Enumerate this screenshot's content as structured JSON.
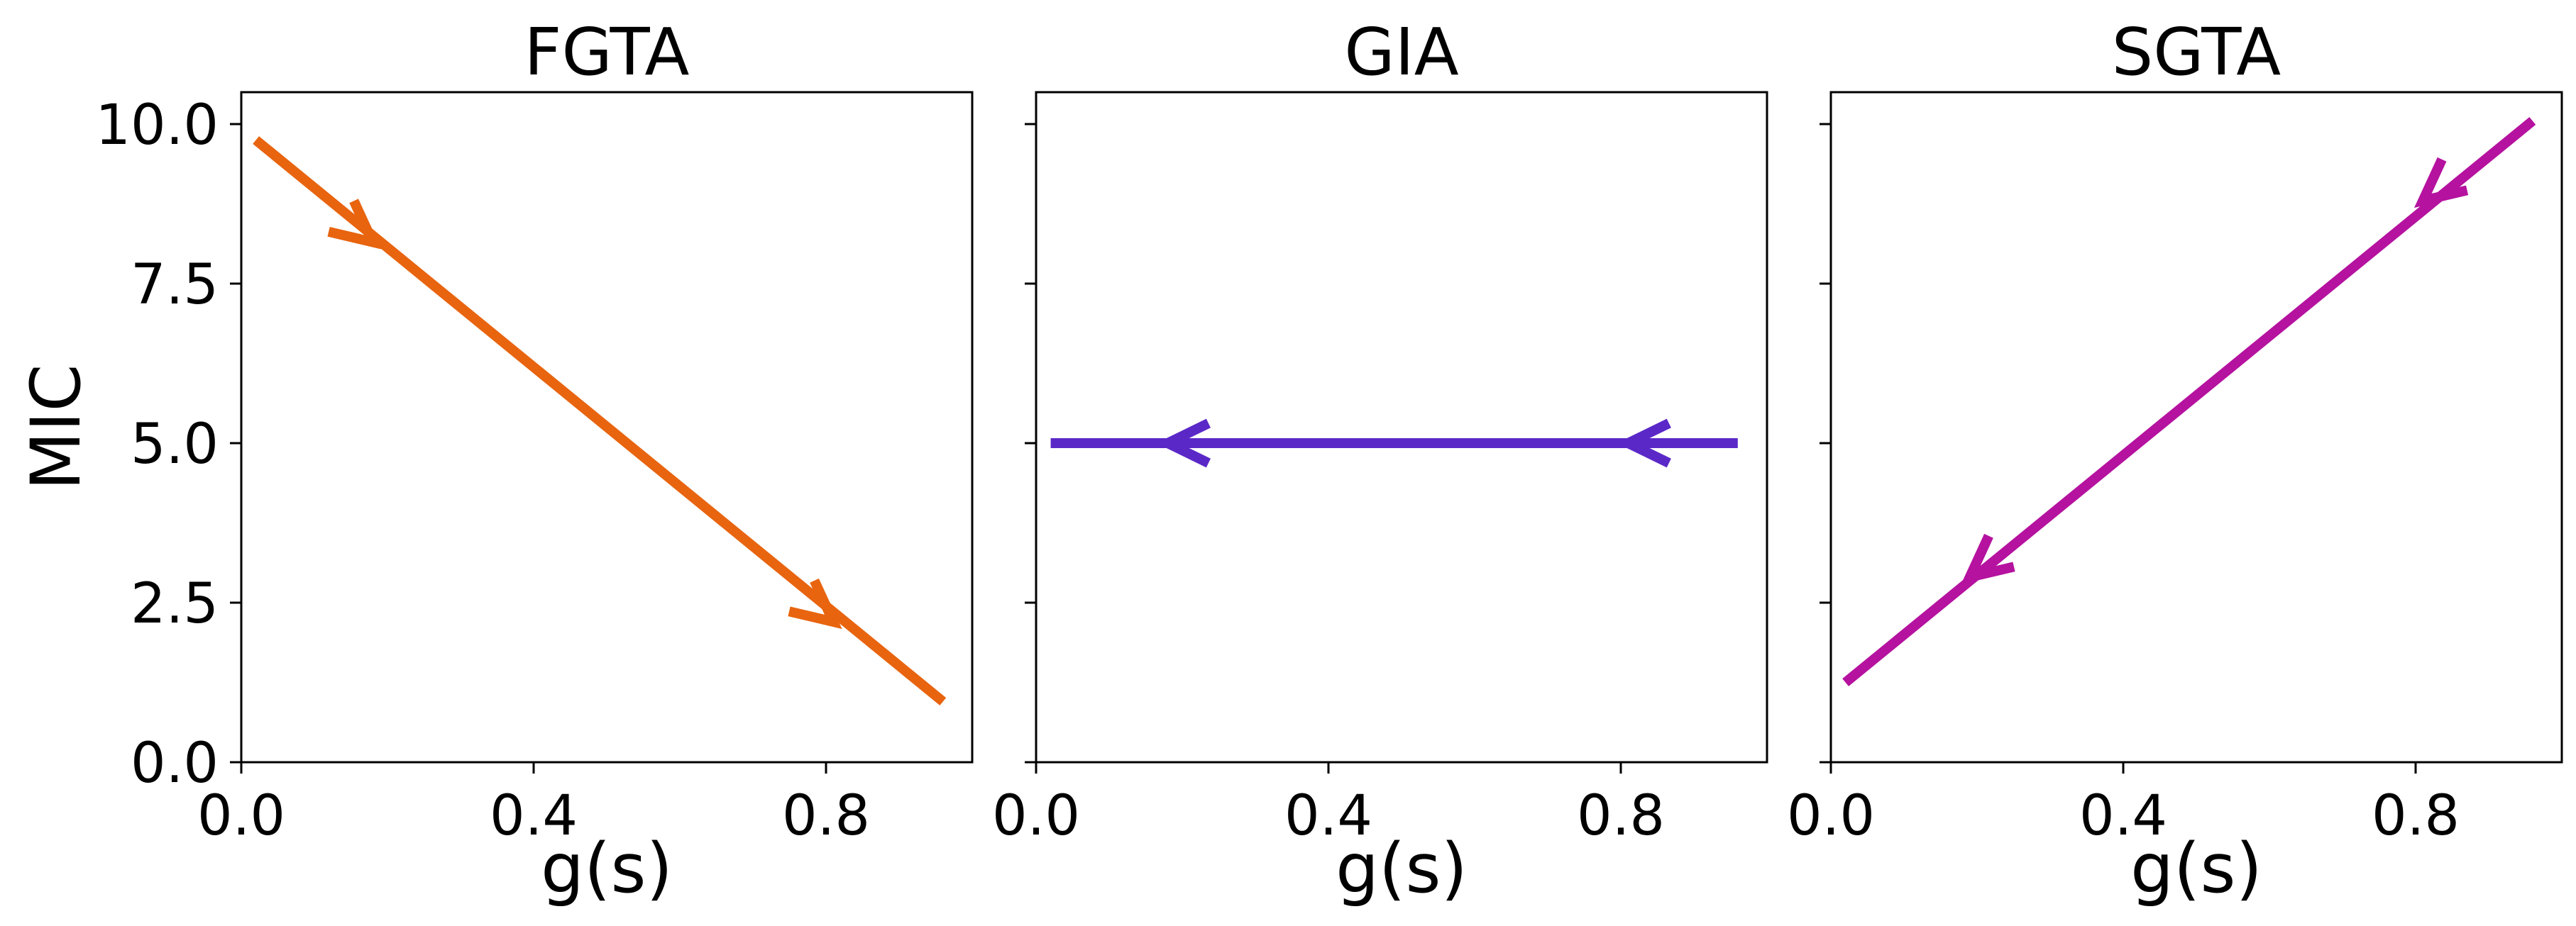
{
  "chart_data": [
    {
      "type": "line",
      "title": "FGTA",
      "xlabel": "g(s)",
      "ylabel": "MIC",
      "xlim": [
        0.0,
        1.0
      ],
      "ylim": [
        0.0,
        10.5
      ],
      "xticks": [
        "0.0",
        "0.4",
        "0.8"
      ],
      "xtick_values": [
        0.0,
        0.4,
        0.8
      ],
      "yticks": [
        "0.0",
        "2.5",
        "5.0",
        "7.5",
        "10.0"
      ],
      "ytick_values": [
        0.0,
        2.5,
        5.0,
        7.5,
        10.0
      ],
      "show_yticklabels": true,
      "series": [
        {
          "color": "#e8640f",
          "x": [
            0.02,
            0.96
          ],
          "y": [
            9.75,
            0.95
          ],
          "arrows": [
            {
              "x": 0.18,
              "y": 8.15
            },
            {
              "x": 0.81,
              "y": 2.2
            }
          ]
        }
      ]
    },
    {
      "type": "line",
      "title": "GIA",
      "xlabel": "g(s)",
      "ylabel": "",
      "xlim": [
        0.0,
        1.0
      ],
      "ylim": [
        0.0,
        10.5
      ],
      "xticks": [
        "0.0",
        "0.4",
        "0.8"
      ],
      "xtick_values": [
        0.0,
        0.4,
        0.8
      ],
      "yticks": [],
      "ytick_values": [
        0.0,
        2.5,
        5.0,
        7.5,
        10.0
      ],
      "show_yticklabels": false,
      "series": [
        {
          "color": "#5b28c8",
          "x": [
            0.96,
            0.02
          ],
          "y": [
            5.0,
            5.0
          ],
          "arrows": [
            {
              "x": 0.81,
              "y": 5.0
            },
            {
              "x": 0.18,
              "y": 5.0
            }
          ]
        }
      ]
    },
    {
      "type": "line",
      "title": "SGTA",
      "xlabel": "g(s)",
      "ylabel": "",
      "xlim": [
        0.0,
        1.0
      ],
      "ylim": [
        0.0,
        10.5
      ],
      "xticks": [
        "0.0",
        "0.4",
        "0.8"
      ],
      "xtick_values": [
        0.0,
        0.4,
        0.8
      ],
      "yticks": [],
      "ytick_values": [
        0.0,
        2.5,
        5.0,
        7.5,
        10.0
      ],
      "show_yticklabels": false,
      "series": [
        {
          "color": "#b5129f",
          "x": [
            0.96,
            0.02
          ],
          "y": [
            10.05,
            1.25
          ],
          "arrows": [
            {
              "x": 0.81,
              "y": 8.8
            },
            {
              "x": 0.19,
              "y": 2.9
            }
          ]
        }
      ]
    }
  ]
}
